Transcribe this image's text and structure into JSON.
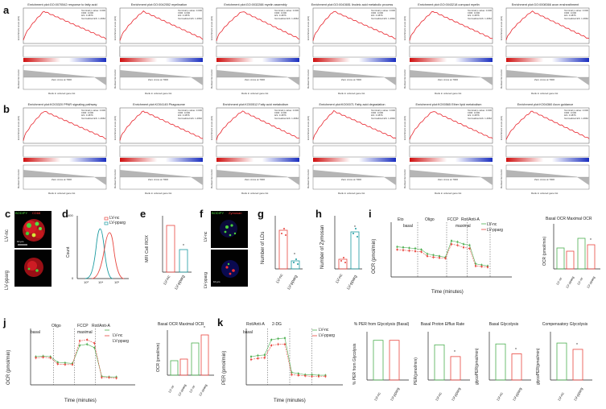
{
  "panels": {
    "a": "a",
    "b": "b",
    "c": "c",
    "d": "d",
    "e": "e",
    "f": "f",
    "g": "g",
    "h": "h",
    "i": "i",
    "j": "j",
    "k": "k"
  },
  "colors": {
    "red": "#e8463f",
    "green": "#4caf50",
    "teal": "#1a9aa0",
    "pink": "#f06a6a",
    "blue_bar": "#2b3fb8",
    "gray": "#888888"
  },
  "gsea_common": {
    "es_label": "Enrichment score (ES)",
    "ranked_label": "Ranked list metric",
    "zero_cross": "Zero cross at 7000",
    "x_label": "Rank in ordered gene list",
    "stats": [
      "Nominal p-value: 0.000",
      "FDR: 0.000",
      "ES: 0.4876",
      "Normalized ES: 1.4962"
    ]
  },
  "gsea_row_a": [
    {
      "title": "Enrichment plot:GO:0070542 response to fatty acid"
    },
    {
      "title": "Enrichment plot:GO:0042552 myelination"
    },
    {
      "title": "Enrichment plot:GO:0032288 myelin assembly"
    },
    {
      "title": "Enrichment plot:GO:0043651 linoleic acid metabolic process"
    },
    {
      "title": "Enrichment plot:GO:0043218 compact myelin"
    },
    {
      "title": "Enrichment plot:GO:0008366 axon ensheathment"
    }
  ],
  "gsea_row_b": [
    {
      "title": "Enrichment plot:KO03320 PPAR signaling pathway"
    },
    {
      "title": "Enrichment plot:KO04145 Phagosome"
    },
    {
      "title": "Enrichment plot:KO00512 Fatty acid metabolism"
    },
    {
      "title": "Enrichment plot:KO00071 Fatty acid degradation"
    },
    {
      "title": "Enrichment plot:KO00565 Ether lipid metabolism"
    },
    {
      "title": "Enrichment plot:KO04360 Axon guidance"
    }
  ],
  "panel_c": {
    "label_top": "BODIPY",
    "label_top2": "CD68",
    "row1": "LV-nc",
    "row2": "LV-pparg",
    "scale": "10 μm"
  },
  "panel_d": {
    "y_label": "Count",
    "legend": [
      "LV-nc",
      "LV-pparg"
    ],
    "y_ticks": [
      "0",
      "100",
      "200",
      "300",
      "400"
    ],
    "x_ticks": [
      "0",
      "10³",
      "10⁴",
      "10⁵"
    ]
  },
  "panel_e": {
    "y_label": "MFI Cell ROX",
    "y_ticks": [
      "0",
      "1×10³",
      "2×10³",
      "3×10³",
      "4×10³",
      "5×10³"
    ],
    "groups": [
      "LV-nc",
      "LV-pparg"
    ],
    "star": "*"
  },
  "panel_f": {
    "label_top": "BODIPY",
    "label_top2": "Zymosan",
    "row1": "LV-nc",
    "row2": "LV-pparg",
    "scale": "10 μm"
  },
  "panel_g": {
    "y_label": "Number of LDs",
    "y_ticks": [
      "0",
      "10",
      "20",
      "30"
    ],
    "groups": [
      "LV-nc",
      "LV-pparg"
    ],
    "star": "*"
  },
  "panel_h": {
    "y_label": "Number of Zymosan",
    "y_ticks": [
      "0",
      "5",
      "10",
      "15",
      "20"
    ],
    "groups": [
      "LV-nc",
      "LV-pparg"
    ],
    "star": "*"
  },
  "panel_i": {
    "y_label": "OCR (pmol/min)",
    "x_label": "Time (minutes)",
    "annotations": [
      "Eto",
      "basal",
      "Oligo",
      "FCCP",
      "Rot/Anti-A",
      "maximal"
    ],
    "legend": [
      "LV-nc",
      "LV-pparg"
    ],
    "y_ticks": [
      "0",
      "50",
      "100",
      "150"
    ],
    "x_ticks": [
      "0",
      "20",
      "40",
      "60",
      "80",
      "100"
    ],
    "bar_title": "Basal OCR  Maximal OCR",
    "bar_y_label": "OCR (pmol/min)",
    "bar_y_ticks": [
      "0",
      "50",
      "100",
      "150"
    ],
    "bar_groups": [
      "LV-nc",
      "LV-pparg",
      "LV-nc",
      "LV-pparg"
    ],
    "star": "*"
  },
  "panel_j": {
    "y_label": "OCR (pmol/min)",
    "x_label": "Time (minutes)",
    "annotations": [
      "Oligo",
      "FCCP",
      "Rot/Anti-A",
      "basal",
      "maximal"
    ],
    "legend": [
      "LV-nc",
      "LV-pparg"
    ],
    "y_ticks": [
      "0",
      "50",
      "100",
      "150",
      "200"
    ],
    "x_ticks": [
      "0",
      "20",
      "40",
      "60",
      "80"
    ],
    "bar_title": "Basal OCR  Maximal OCR",
    "bar_y_label": "OCR (pmol/min)",
    "bar_y_ticks": [
      "0",
      "50",
      "100",
      "150",
      "200"
    ],
    "bar_groups": [
      "LV-nc",
      "LV-pparg",
      "LV-nc",
      "LV-pparg"
    ],
    "star": "*"
  },
  "panel_k": {
    "y_label": "PER (pmol/min)",
    "x_label": "Time (minutes)",
    "annotations": [
      "Rot/Anti-A",
      "2-DG",
      "basal"
    ],
    "legend": [
      "LV-nc",
      "LV-pparg"
    ],
    "y_ticks": [
      "0",
      "200",
      "400",
      "600"
    ],
    "x_ticks": [
      "0",
      "20",
      "40",
      "60",
      "80"
    ],
    "bars": [
      {
        "title": "% PER from Glycolysis (Basal)",
        "y_label": "% PER from Glycolysis",
        "y_ticks": [
          "0",
          "20",
          "40",
          "60",
          "80",
          "100"
        ],
        "groups": [
          "LV-nc",
          "LV-pparg"
        ],
        "star": ""
      },
      {
        "title": "Basal Proton Efflux Rate",
        "y_label": "PER(pmol/min)",
        "y_ticks": [
          "0",
          "100",
          "200",
          "300",
          "400",
          "500"
        ],
        "groups": [
          "LV-nc",
          "LV-pparg"
        ],
        "star": "*"
      },
      {
        "title": "Basal Glycolysis",
        "y_label": "glycoPER(pmol/min)",
        "y_ticks": [
          "0",
          "100",
          "200",
          "300",
          "400"
        ],
        "groups": [
          "LV-nc",
          "LV-pparg"
        ],
        "star": "*"
      },
      {
        "title": "Compensatory Glycolysis",
        "y_label": "glycoPER(pmol/min)",
        "y_ticks": [
          "0",
          "100",
          "200",
          "300",
          "400",
          "500",
          "600"
        ],
        "groups": [
          "LV-nc",
          "LV-pparg"
        ],
        "star": "*"
      }
    ]
  }
}
